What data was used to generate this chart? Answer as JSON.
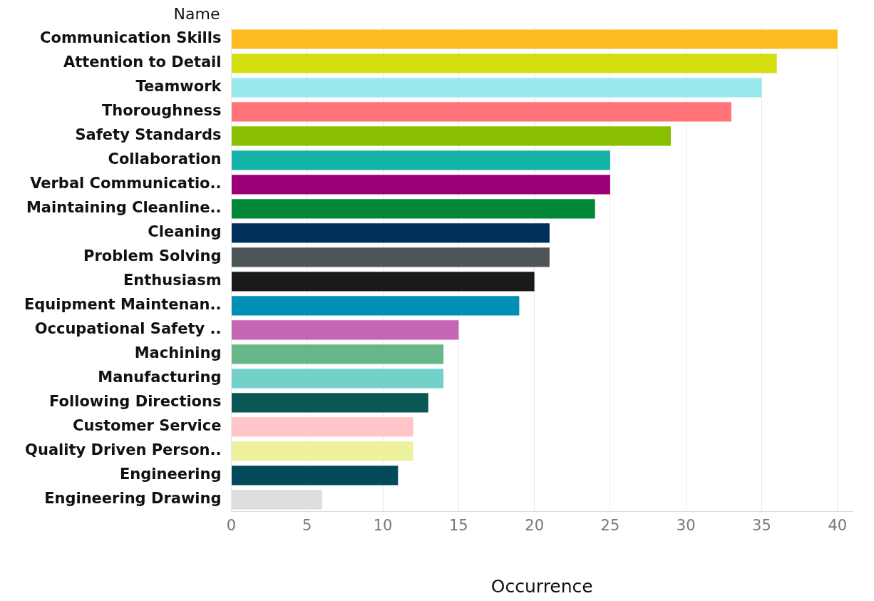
{
  "chart_data": {
    "type": "bar",
    "orientation": "horizontal",
    "ylabel": "Name",
    "xlabel": "Occurrence",
    "categories": [
      "Communication Skills",
      "Attention to Detail",
      "Teamwork",
      "Thoroughness",
      "Safety Standards",
      "Collaboration",
      "Verbal Communicatio..",
      "Maintaining Cleanline..",
      "Cleaning",
      "Problem Solving",
      "Enthusiasm",
      "Equipment Maintenan..",
      "Occupational Safety ..",
      "Machining",
      "Manufacturing",
      "Following Directions",
      "Customer Service",
      "Quality Driven Person..",
      "Engineering",
      "Engineering Drawing"
    ],
    "values": [
      40,
      36,
      35,
      33,
      29,
      25,
      25,
      24,
      21,
      21,
      20,
      19,
      15,
      14,
      14,
      13,
      12,
      12,
      11,
      6
    ],
    "colors": [
      "#ffbb22",
      "#d4dd0e",
      "#99e8ec",
      "#ff7379",
      "#88bf00",
      "#14b3a8",
      "#9b0077",
      "#008838",
      "#002f5c",
      "#4f5659",
      "#1a1a1a",
      "#008fb6",
      "#c566b5",
      "#66b687",
      "#72d2ca",
      "#0a5855",
      "#ffc5c8",
      "#eef29c",
      "#004a5b",
      "#dedede"
    ],
    "xlim": [
      0,
      41
    ],
    "xticks": [
      0,
      5,
      10,
      15,
      20,
      25,
      30,
      35,
      40
    ],
    "grid": "x",
    "legend": false
  }
}
